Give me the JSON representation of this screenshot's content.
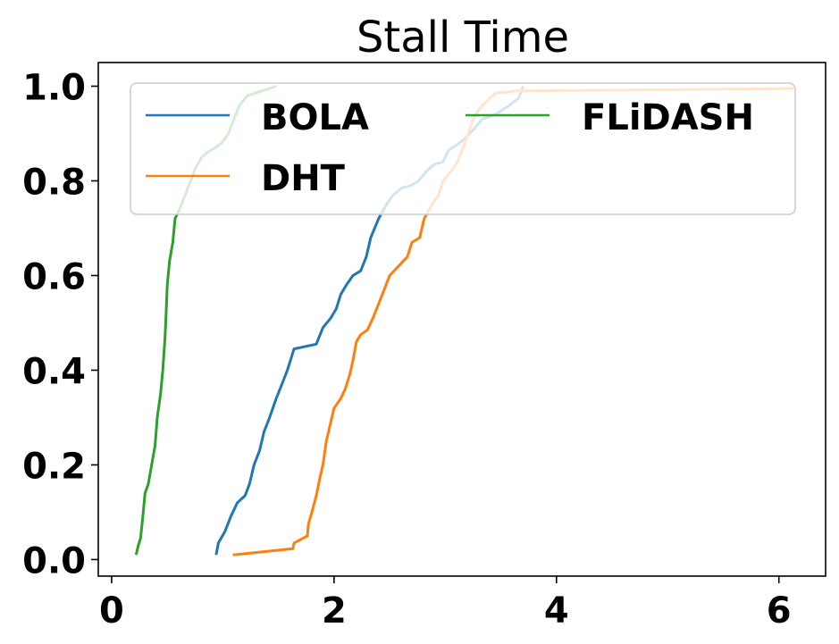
{
  "chart_data": {
    "type": "line",
    "title": "Stall Time",
    "xlabel": "",
    "ylabel": "",
    "xlim": [
      -0.12,
      6.42
    ],
    "ylim": [
      -0.035,
      1.05
    ],
    "xticks": [
      0,
      2,
      4,
      6
    ],
    "xtick_labels": [
      "0",
      "2",
      "4",
      "6"
    ],
    "yticks": [
      0.0,
      0.2,
      0.4,
      0.6,
      0.8,
      1.0
    ],
    "ytick_labels": [
      "0.0",
      "0.2",
      "0.4",
      "0.6",
      "0.8",
      "1.0"
    ],
    "grid": false,
    "legend_position": "top",
    "legend_columns": 2,
    "series": [
      {
        "name": "BOLA",
        "color": "#1f77b4",
        "points": [
          [
            0.94,
            0.01
          ],
          [
            0.96,
            0.035
          ],
          [
            1.02,
            0.06
          ],
          [
            1.07,
            0.09
          ],
          [
            1.13,
            0.12
          ],
          [
            1.2,
            0.135
          ],
          [
            1.24,
            0.16
          ],
          [
            1.28,
            0.2
          ],
          [
            1.33,
            0.23
          ],
          [
            1.37,
            0.27
          ],
          [
            1.42,
            0.3
          ],
          [
            1.48,
            0.34
          ],
          [
            1.53,
            0.37
          ],
          [
            1.58,
            0.4
          ],
          [
            1.64,
            0.445
          ],
          [
            1.84,
            0.455
          ],
          [
            1.9,
            0.49
          ],
          [
            1.97,
            0.51
          ],
          [
            2.02,
            0.53
          ],
          [
            2.06,
            0.56
          ],
          [
            2.11,
            0.58
          ],
          [
            2.17,
            0.6
          ],
          [
            2.24,
            0.61
          ],
          [
            2.29,
            0.64
          ],
          [
            2.33,
            0.68
          ],
          [
            2.4,
            0.72
          ],
          [
            2.47,
            0.75
          ],
          [
            2.53,
            0.77
          ],
          [
            2.61,
            0.785
          ],
          [
            2.69,
            0.79
          ],
          [
            2.76,
            0.8
          ],
          [
            2.83,
            0.82
          ],
          [
            2.9,
            0.835
          ],
          [
            2.98,
            0.84
          ],
          [
            3.03,
            0.865
          ],
          [
            3.1,
            0.875
          ],
          [
            3.18,
            0.89
          ],
          [
            3.26,
            0.91
          ],
          [
            3.33,
            0.93
          ],
          [
            3.45,
            0.94
          ],
          [
            3.58,
            0.96
          ],
          [
            3.66,
            0.975
          ],
          [
            3.7,
            1.0
          ]
        ]
      },
      {
        "name": "DHT",
        "color": "#ff7f0e",
        "points": [
          [
            1.09,
            0.01
          ],
          [
            1.63,
            0.023
          ],
          [
            1.64,
            0.035
          ],
          [
            1.76,
            0.05
          ],
          [
            1.77,
            0.075
          ],
          [
            1.8,
            0.1
          ],
          [
            1.84,
            0.135
          ],
          [
            1.87,
            0.17
          ],
          [
            1.9,
            0.2
          ],
          [
            1.93,
            0.25
          ],
          [
            1.96,
            0.28
          ],
          [
            2.0,
            0.32
          ],
          [
            2.06,
            0.34
          ],
          [
            2.1,
            0.36
          ],
          [
            2.14,
            0.39
          ],
          [
            2.17,
            0.42
          ],
          [
            2.2,
            0.46
          ],
          [
            2.24,
            0.475
          ],
          [
            2.3,
            0.485
          ],
          [
            2.35,
            0.51
          ],
          [
            2.4,
            0.54
          ],
          [
            2.45,
            0.57
          ],
          [
            2.5,
            0.6
          ],
          [
            2.58,
            0.62
          ],
          [
            2.66,
            0.64
          ],
          [
            2.7,
            0.67
          ],
          [
            2.77,
            0.68
          ],
          [
            2.81,
            0.72
          ],
          [
            2.88,
            0.75
          ],
          [
            2.94,
            0.77
          ],
          [
            2.98,
            0.8
          ],
          [
            3.05,
            0.82
          ],
          [
            3.11,
            0.84
          ],
          [
            3.16,
            0.87
          ],
          [
            3.2,
            0.895
          ],
          [
            3.25,
            0.93
          ],
          [
            3.3,
            0.95
          ],
          [
            3.38,
            0.97
          ],
          [
            3.45,
            0.985
          ],
          [
            3.65,
            0.99
          ],
          [
            6.13,
            0.995
          ]
        ]
      },
      {
        "name": "FLiDASH",
        "color": "#2ca02c",
        "points": [
          [
            0.22,
            0.01
          ],
          [
            0.24,
            0.03
          ],
          [
            0.26,
            0.045
          ],
          [
            0.28,
            0.09
          ],
          [
            0.3,
            0.14
          ],
          [
            0.33,
            0.16
          ],
          [
            0.36,
            0.2
          ],
          [
            0.39,
            0.24
          ],
          [
            0.41,
            0.3
          ],
          [
            0.44,
            0.35
          ],
          [
            0.46,
            0.4
          ],
          [
            0.48,
            0.47
          ],
          [
            0.49,
            0.52
          ],
          [
            0.5,
            0.58
          ],
          [
            0.52,
            0.63
          ],
          [
            0.55,
            0.67
          ],
          [
            0.57,
            0.72
          ],
          [
            0.61,
            0.74
          ],
          [
            0.66,
            0.77
          ],
          [
            0.71,
            0.8
          ],
          [
            0.76,
            0.83
          ],
          [
            0.81,
            0.85
          ],
          [
            0.86,
            0.86
          ],
          [
            0.93,
            0.87
          ],
          [
            0.99,
            0.88
          ],
          [
            1.05,
            0.9
          ],
          [
            1.1,
            0.93
          ],
          [
            1.15,
            0.96
          ],
          [
            1.22,
            0.98
          ],
          [
            1.35,
            0.99
          ],
          [
            1.48,
            1.0
          ]
        ]
      }
    ]
  }
}
